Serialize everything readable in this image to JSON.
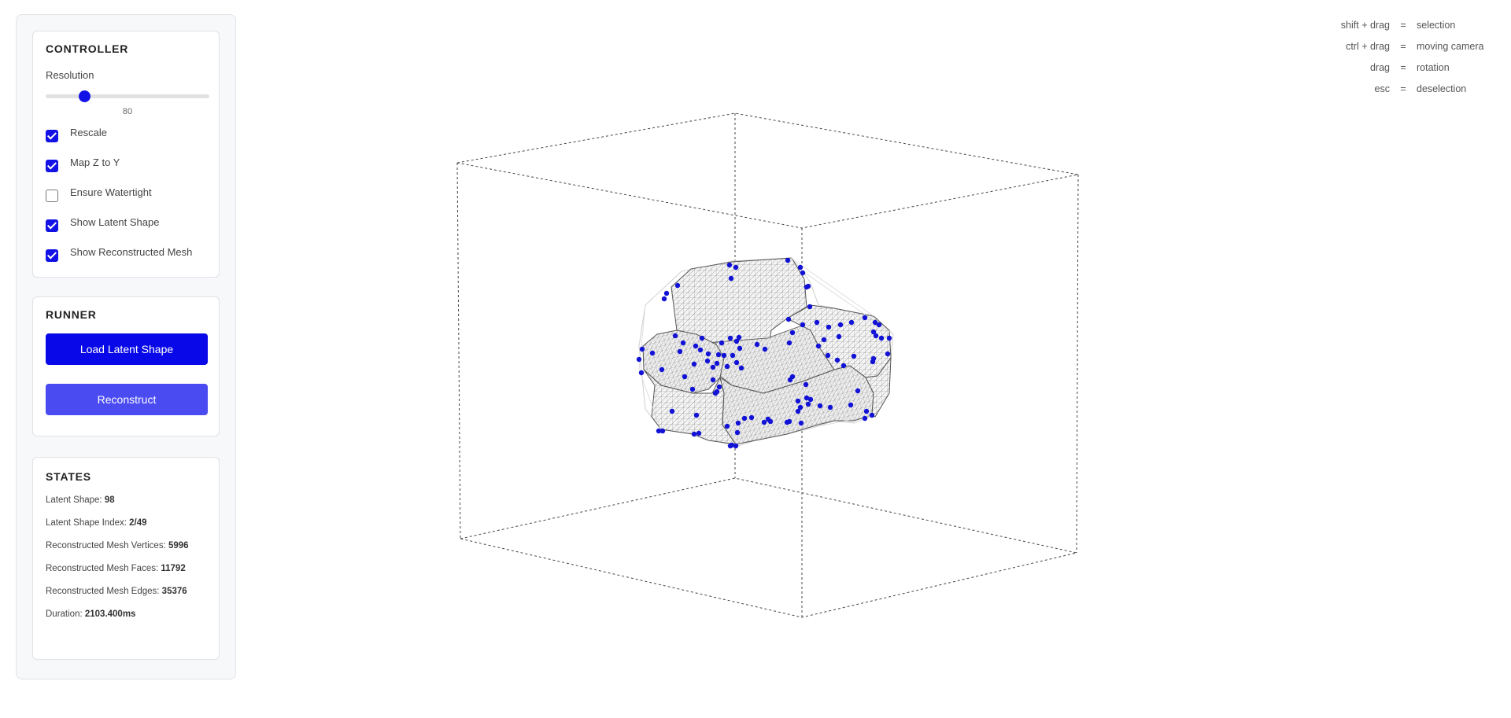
{
  "controller": {
    "title": "CONTROLLER",
    "resolution_label": "Resolution",
    "resolution_value": "80",
    "resolution_fraction": 0.24,
    "checkboxes": [
      {
        "label": "Rescale",
        "checked": true
      },
      {
        "label": "Map Z to Y",
        "checked": true
      },
      {
        "label": "Ensure Watertight",
        "checked": false
      },
      {
        "label": "Show Latent Shape",
        "checked": true
      },
      {
        "label": "Show Reconstructed Mesh",
        "checked": true
      }
    ]
  },
  "runner": {
    "title": "RUNNER",
    "load_label": "Load Latent Shape",
    "reconstruct_label": "Reconstruct"
  },
  "states": {
    "title": "STATES",
    "rows": [
      {
        "label": "Latent Shape: ",
        "value": "98"
      },
      {
        "label": "Latent Shape Index: ",
        "value": "2/49"
      },
      {
        "label": "Reconstructed Mesh Vertices: ",
        "value": "5996"
      },
      {
        "label": "Reconstructed Mesh Faces: ",
        "value": "11792"
      },
      {
        "label": "Reconstructed Mesh Edges: ",
        "value": "35376"
      },
      {
        "label": "Duration: ",
        "value": "2103.400ms"
      }
    ]
  },
  "help": [
    {
      "key": "shift + drag",
      "eq": "=",
      "action": "selection"
    },
    {
      "key": "ctrl + drag",
      "eq": "=",
      "action": "moving camera"
    },
    {
      "key": "drag",
      "eq": "=",
      "action": "rotation"
    },
    {
      "key": "esc",
      "eq": "=",
      "action": "deselection"
    }
  ],
  "colors": {
    "accent": "#0808e8",
    "accent_light": "#4b4bf2",
    "point": "#1212d6",
    "mesh": "#9a9a9a"
  }
}
